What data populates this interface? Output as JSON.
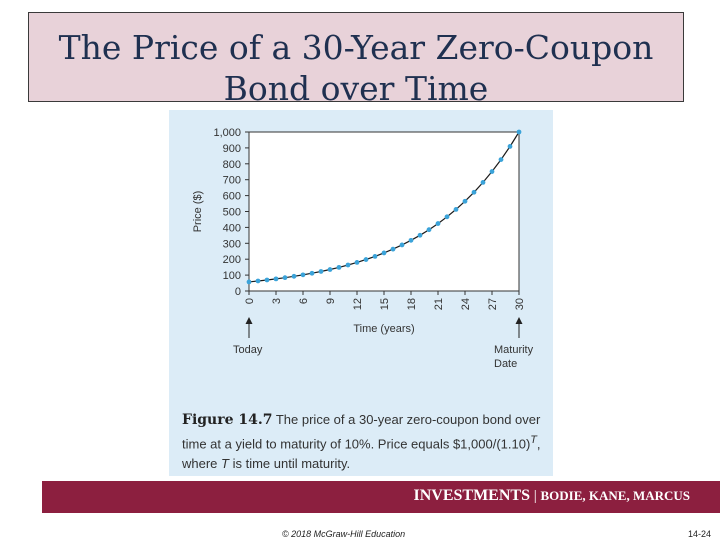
{
  "slide": {
    "title_line1": "The Price of a 30-Year Zero-Coupon",
    "title_line2": "Bond over Time"
  },
  "caption": {
    "figure_number": "Figure 14.7",
    "text_a": " The price of a 30-year zero-coupon bond over time at a yield to maturity of 10%. Price equals $1,000/(1.10)",
    "superscript": "T",
    "text_b": ", where ",
    "italic_var": "T",
    "text_c": " is time until maturity."
  },
  "footer": {
    "brand": "INVESTMENTS",
    "separator": " | ",
    "authors": "BODIE, KANE, MARCUS",
    "copyright": "© 2018 McGraw-Hill Education",
    "page": "14-24"
  },
  "colors": {
    "title_bg": "#e8d2d9",
    "title_text": "#1f3050",
    "figure_bg": "#dcecf7",
    "footer_bg": "#8c1f3f",
    "marker": "#3ba3d9",
    "line": "#1a1a1a"
  },
  "chart_data": {
    "type": "line",
    "xlabel": "Time (years)",
    "ylabel": "Price ($)",
    "xlim": [
      0,
      30
    ],
    "ylim": [
      0,
      1000
    ],
    "x_ticks": [
      0,
      3,
      6,
      9,
      12,
      15,
      18,
      21,
      24,
      27,
      30
    ],
    "y_ticks": [
      0,
      100,
      200,
      300,
      400,
      500,
      600,
      700,
      800,
      900,
      1000
    ],
    "y_tick_labels": [
      "0",
      "100",
      "200",
      "300",
      "400",
      "500",
      "600",
      "700",
      "800",
      "900",
      "1,000"
    ],
    "annotations": [
      {
        "label": "Today",
        "x": 0
      },
      {
        "label": "Maturity Date",
        "x": 30
      }
    ],
    "grid": false,
    "series": [
      {
        "x": [
          0,
          1,
          2,
          3,
          4,
          5,
          6,
          7,
          8,
          9,
          10,
          11,
          12,
          13,
          14,
          15,
          16,
          17,
          18,
          19,
          20,
          21,
          22,
          23,
          24,
          25,
          26,
          27,
          28,
          29,
          30
        ],
        "values": [
          57.31,
          63.04,
          69.34,
          76.28,
          83.91,
          92.3,
          101.53,
          111.68,
          122.84,
          135.13,
          148.64,
          163.51,
          179.86,
          197.84,
          217.63,
          239.39,
          263.33,
          289.66,
          318.63,
          350.49,
          385.54,
          424.1,
          466.51,
          513.16,
          564.47,
          620.92,
          683.01,
          751.31,
          826.45,
          909.09,
          1000.0
        ]
      }
    ]
  }
}
